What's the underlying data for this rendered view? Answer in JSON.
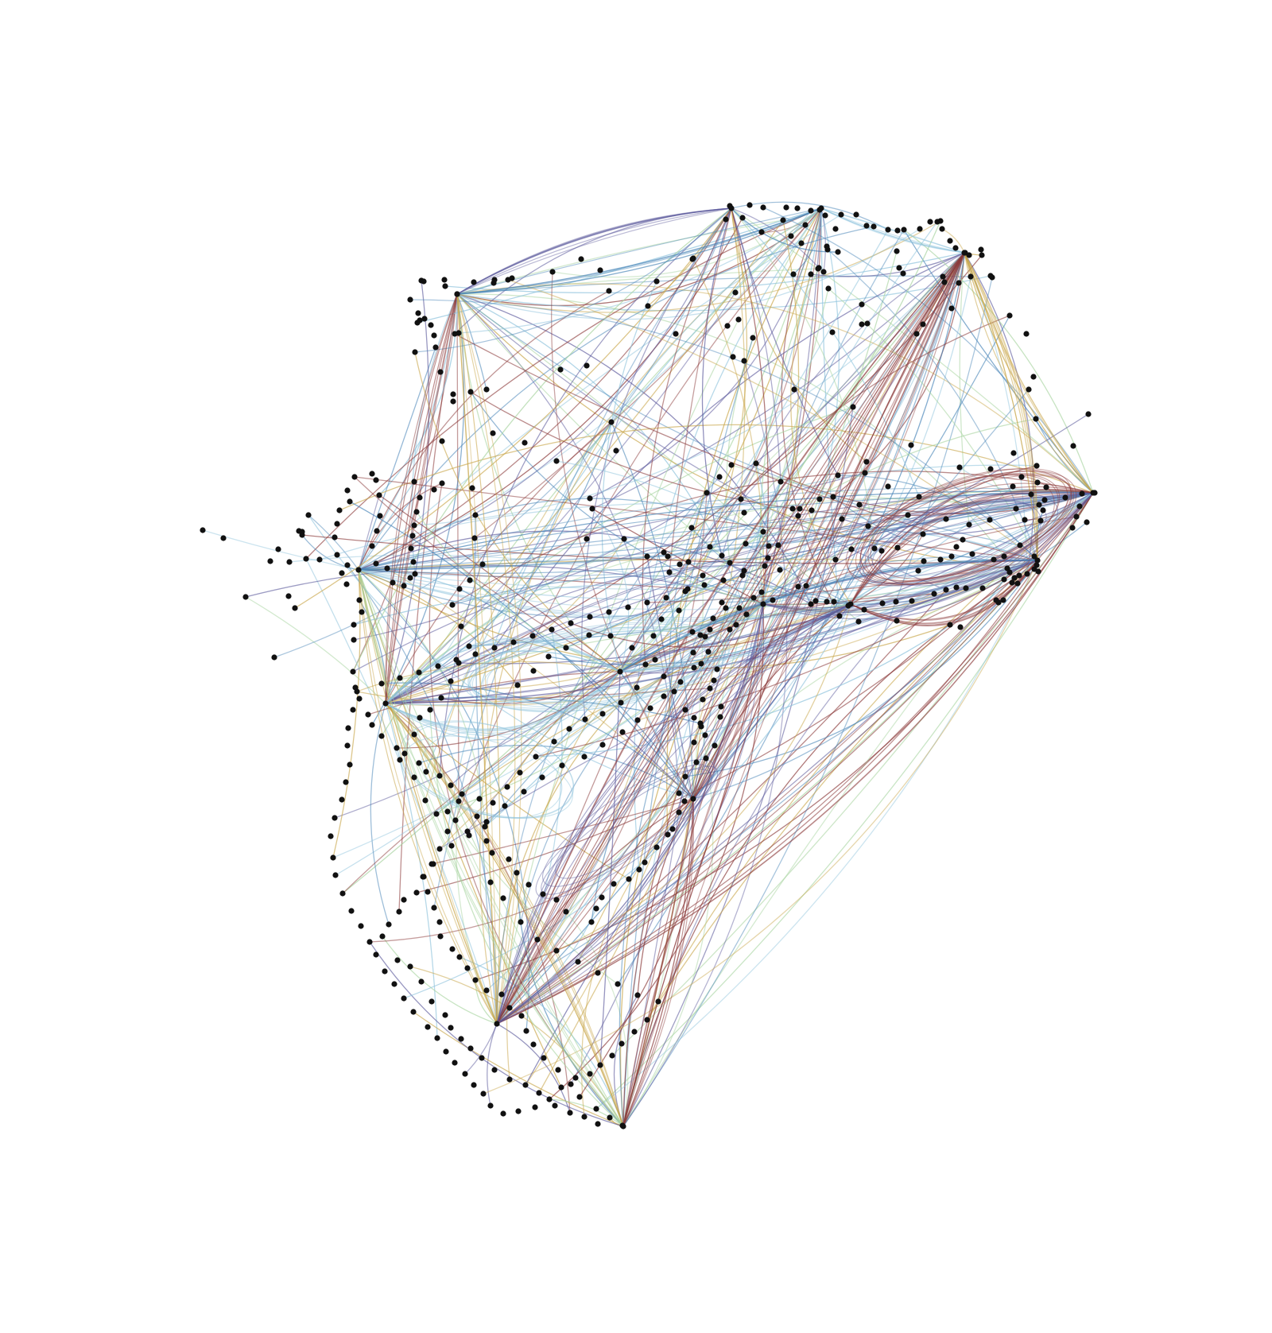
{
  "diagram": {
    "type": "network-graph",
    "background": "#ffffff",
    "node_color": "#111111",
    "edge_palette": {
      "brown": "#8b3a3a",
      "blue": "#4a86b8",
      "light-blue": "#8ec3dc",
      "purple": "#5c5a9c",
      "olive": "#c8a548",
      "light-green": "#a8d4a0"
    },
    "text_labels": []
  }
}
